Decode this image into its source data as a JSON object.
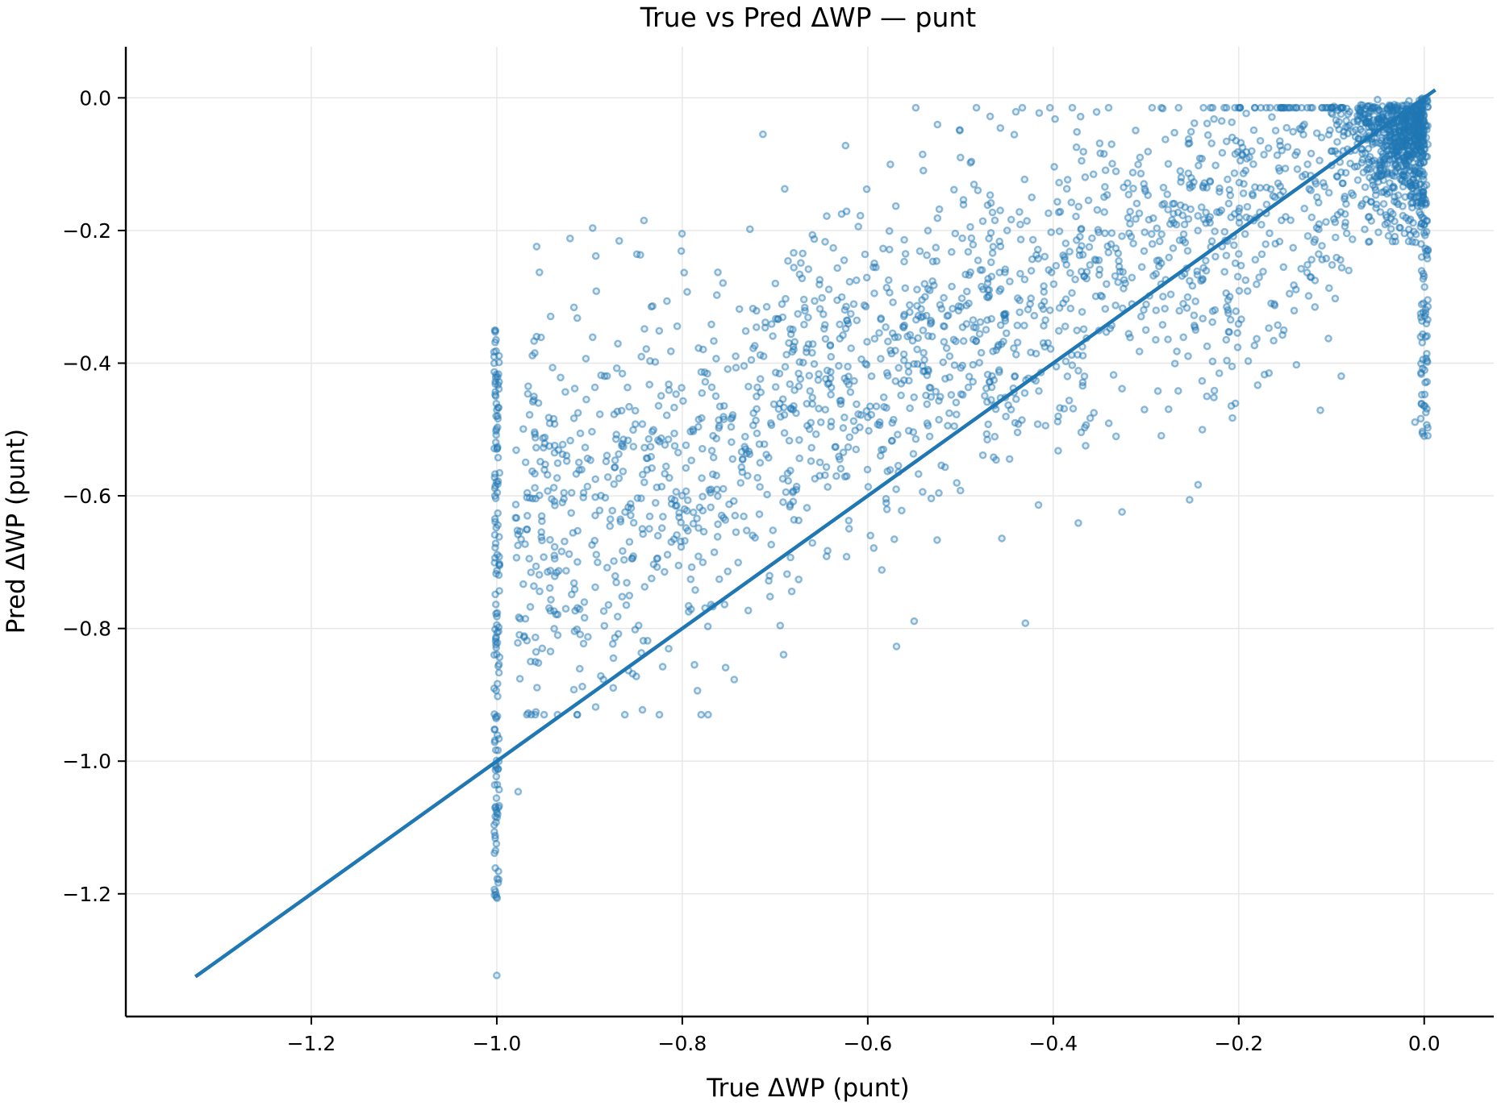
{
  "chart_data": {
    "type": "scatter",
    "title": "True vs Pred ΔWP — punt",
    "xlabel": "True ΔWP (punt)",
    "ylabel": "Pred ΔWP (punt)",
    "xlim": [
      -1.4,
      0.075
    ],
    "ylim": [
      -1.385,
      0.077
    ],
    "x_ticks": [
      -1.2,
      -1.0,
      -0.8,
      -0.6,
      -0.4,
      -0.2,
      0.0
    ],
    "x_tick_labels": [
      "−1.2",
      "−1.0",
      "−0.8",
      "−0.6",
      "−0.4",
      "−0.2",
      "0.0"
    ],
    "y_ticks": [
      0.0,
      -0.2,
      -0.4,
      -0.6,
      -0.8,
      -1.0,
      -1.2
    ],
    "y_tick_labels": [
      "0.0",
      "−0.2",
      "−0.4",
      "−0.6",
      "−0.8",
      "−1.0",
      "−1.2"
    ],
    "grid": true,
    "legend": "none",
    "colors": {
      "points": "#1f77b4",
      "reference_line": "#1f77b4",
      "grid": "#e6e6e6",
      "axis": "#000000"
    },
    "reference_line": {
      "name": "y = x",
      "x": [
        -1.325,
        0.012
      ],
      "y": [
        -1.325,
        0.012
      ]
    },
    "point_clusters": [
      {
        "description": "x = -1.0 wall",
        "x_center": -1.0,
        "x_spread": 0.003,
        "y_min": -1.22,
        "y_max": -0.35,
        "count": 150
      },
      {
        "description": "near zero dense",
        "x_center": -0.04,
        "x_spread": 0.04,
        "y_min": -0.22,
        "y_max": 0.0,
        "count": 700
      },
      {
        "description": "x = 0 column",
        "x_center": 0.0,
        "x_spread": 0.004,
        "y_min": -0.51,
        "y_max": 0.0,
        "count": 120
      },
      {
        "description": "main band",
        "x_range": [
          -0.98,
          -0.08
        ],
        "y_spread": 0.17,
        "count": 1700
      }
    ],
    "points": [
      [
        -1.0,
        -1.323
      ],
      [
        -0.713,
        -0.055
      ],
      [
        -0.624,
        -0.072
      ],
      [
        -0.43,
        -0.792
      ],
      [
        -0.954,
        -0.263
      ],
      [
        -0.921,
        -0.212
      ],
      [
        -0.801,
        -0.231
      ],
      [
        -0.727,
        -0.198
      ],
      [
        -0.468,
        -0.028
      ],
      [
        -0.398,
        -0.032
      ],
      [
        -0.5,
        -0.09
      ],
      [
        -0.112,
        -0.471
      ],
      [
        -0.253,
        -0.606
      ],
      [
        -0.373,
        -0.641
      ],
      [
        -0.0,
        -0.51
      ],
      [
        -0.01,
        -0.489
      ],
      [
        -0.744,
        -0.877
      ],
      [
        -0.569,
        -0.827
      ],
      [
        -0.55,
        -0.789
      ],
      [
        -0.977,
        -1.046
      ]
    ]
  }
}
